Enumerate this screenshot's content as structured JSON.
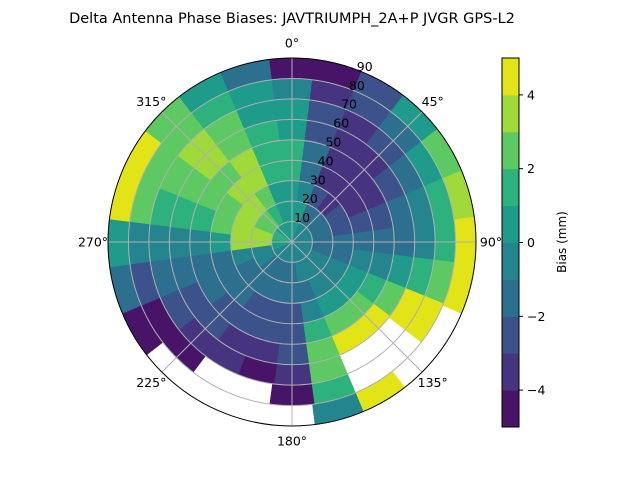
{
  "chart_data": {
    "type": "heatmap",
    "subtype": "polar-contour",
    "title": "Delta Antenna Phase Biases: JAVTRIUMPH_2A+P JVGR GPS-L2",
    "theta_zero": "north",
    "theta_direction": "clockwise",
    "theta_tick_labels": [
      "0°",
      "45°",
      "90°",
      "135°",
      "180°",
      "225°",
      "270°",
      "315°"
    ],
    "theta_ticks": [
      0,
      45,
      90,
      135,
      180,
      225,
      270,
      315
    ],
    "radial_ticks": [
      10,
      20,
      30,
      40,
      50,
      60,
      70,
      80,
      90
    ],
    "radial_tick_labels": [
      "10",
      "20",
      "30",
      "40",
      "50",
      "60",
      "70",
      "80",
      "90"
    ],
    "rlim": [
      0,
      90
    ],
    "grid": true,
    "colorbar": {
      "label": "Bias (mm)",
      "levels": [
        -5,
        -4,
        -3,
        -2,
        -1,
        0,
        1,
        2,
        3,
        4,
        5
      ],
      "ticks": [
        -4,
        -2,
        0,
        2,
        4
      ],
      "tick_labels": [
        "−4",
        "−2",
        "0",
        "2",
        "4"
      ],
      "colors": [
        "#481467",
        "#463480",
        "#3b528b",
        "#2d6f8e",
        "#25858e",
        "#1e9b8a",
        "#2db27d",
        "#5ec962",
        "#9fda3a",
        "#e2e418"
      ],
      "colormap": "viridis"
    },
    "azimuths": [
      0,
      15,
      30,
      45,
      60,
      75,
      90,
      105,
      120,
      135,
      150,
      165,
      180,
      195,
      210,
      225,
      240,
      255,
      270,
      285,
      300,
      315,
      330,
      345
    ],
    "zenith_bins": [
      5,
      15,
      25,
      35,
      45,
      55,
      65,
      75,
      85
    ],
    "bias_mm": [
      [
        0,
        0.5,
        0.5,
        1,
        1,
        0.5,
        0.5,
        -1,
        -4.5
      ],
      [
        0,
        0,
        -1,
        -2,
        -2,
        -2.5,
        -3,
        -3.5,
        -4.5
      ],
      [
        -0.5,
        -1.5,
        -3,
        -3.5,
        -3.5,
        -3.5,
        -3.5,
        -3,
        -2.5
      ],
      [
        -0.5,
        -1.5,
        -3.5,
        -3.5,
        -4,
        -3.5,
        -3,
        -2,
        0.5
      ],
      [
        -0.5,
        -2,
        -3,
        -3.5,
        -3.5,
        -3,
        -2,
        0.5,
        2.5
      ],
      [
        -1,
        -2,
        -2.5,
        -3,
        -3,
        -2,
        -1,
        1,
        3.5
      ],
      [
        -1,
        -2,
        -2,
        -2,
        -2,
        -1.5,
        -0.5,
        1.5,
        4.5
      ],
      [
        -1,
        -1.5,
        -1.5,
        -1,
        -0.5,
        0.5,
        1.5,
        2.5,
        4.5
      ],
      [
        -1,
        -1,
        -1,
        0,
        1.5,
        2.5,
        4.5,
        4.5,
        null
      ],
      [
        -0.5,
        -1,
        -0.5,
        0.5,
        2.5,
        4.5,
        null,
        null,
        null
      ],
      [
        -0.5,
        -0.5,
        -0.5,
        0.5,
        2.5,
        4.5,
        null,
        null,
        4.5
      ],
      [
        -1,
        -1,
        -1.5,
        -0.5,
        1,
        2.5,
        2.5,
        1,
        -0.5
      ],
      [
        -1,
        -1.5,
        -2,
        -2.5,
        -2.5,
        -3,
        -3.5,
        -4.5,
        null
      ],
      [
        -1,
        -1.5,
        -2,
        -2.5,
        -3,
        -3.5,
        -4.5,
        null,
        null
      ],
      [
        -1,
        -1.5,
        -2,
        -2.5,
        -3,
        -3.5,
        -4,
        null,
        null
      ],
      [
        -1,
        -1.5,
        -2,
        -2,
        -2.5,
        -3,
        -3.5,
        -4.5,
        null
      ],
      [
        -0.5,
        -1,
        -1.5,
        -2,
        -2,
        -2.5,
        -3,
        -4.5,
        -4.5
      ],
      [
        0,
        -0.5,
        -1,
        -1.5,
        -1.5,
        -2,
        -2,
        -2.5,
        -1.5
      ],
      [
        0.5,
        3.5,
        3.5,
        0.5,
        -0.5,
        -0.5,
        -0.5,
        -1,
        0.5
      ],
      [
        1,
        3.5,
        3.5,
        2.5,
        1.5,
        1,
        1,
        2.5,
        4.5
      ],
      [
        1,
        2.5,
        3.5,
        2.5,
        2.5,
        2.5,
        2.5,
        2.5,
        4.5
      ],
      [
        0.5,
        2.5,
        3.5,
        3.5,
        2.5,
        3.5,
        3.5,
        2.5,
        2.5
      ],
      [
        0.5,
        1.5,
        2.5,
        3.5,
        3.5,
        2.5,
        2.5,
        1.5,
        0.5
      ],
      [
        0,
        0.5,
        0.5,
        1,
        1.5,
        1,
        0.5,
        0,
        -1.5
      ]
    ]
  }
}
